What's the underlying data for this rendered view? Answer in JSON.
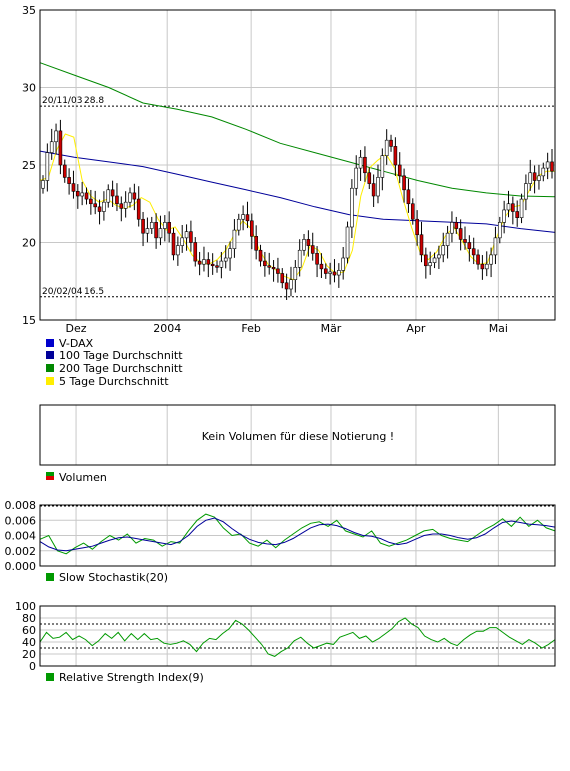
{
  "colors": {
    "vdax": "#0000cc",
    "ma100": "#000099",
    "ma200": "#008800",
    "ma5": "#ffee00",
    "volume_up": "#009900",
    "volume_down": "#dd0000",
    "stoch": "#009900",
    "rsi": "#009900"
  },
  "legend": {
    "vdax": "V-DAX",
    "ma100": "100 Tage Durchschnitt",
    "ma200": "200 Tage Durchschnitt",
    "ma5": "5 Tage Durchschnitt",
    "volume": "Volumen",
    "stoch": "Slow Stochastik(20)",
    "rsi": "Relative Strength Index(9)"
  },
  "volume_message": "Kein Volumen für diese Notierung !",
  "chart_data": [
    {
      "type": "candlestick",
      "id": "price",
      "ylim": [
        15,
        35
      ],
      "yticks": [
        15,
        20,
        25,
        30,
        35
      ],
      "xticks": [
        {
          "label": "Dez",
          "at": 0.07
        },
        {
          "label": "2004",
          "at": 0.247
        },
        {
          "label": "Feb",
          "at": 0.41
        },
        {
          "label": "Mär",
          "at": 0.565
        },
        {
          "label": "Apr",
          "at": 0.73
        },
        {
          "label": "Mai",
          "at": 0.89
        }
      ],
      "annotations": [
        {
          "label": "20/11/03",
          "value": 28.8,
          "text": "28.8"
        },
        {
          "label": "20/02/04",
          "value": 16.5,
          "text": "16.5"
        }
      ],
      "close": [
        24,
        25.8,
        26.5,
        27.2,
        25,
        24.2,
        23.8,
        23.3,
        23.0,
        23.2,
        22.8,
        22.5,
        22.3,
        22.0,
        22.6,
        23.4,
        23.0,
        22.5,
        22.2,
        22.6,
        23.2,
        22.8,
        21.5,
        20.6,
        20.9,
        21.3,
        20.3,
        20.9,
        21.3,
        20.6,
        19.2,
        19.8,
        20.3,
        20.7,
        20.0,
        18.8,
        18.6,
        18.9,
        18.6,
        18.5,
        18.4,
        18.8,
        19.0,
        19.6,
        20.8,
        21.5,
        21.8,
        21.4,
        20.4,
        19.5,
        18.8,
        18.5,
        18.4,
        18.3,
        18.0,
        17.4,
        17.0,
        17.6,
        18.4,
        19.5,
        20.2,
        19.8,
        19.3,
        18.6,
        18.3,
        18.0,
        18.1,
        17.9,
        18.2,
        19.0,
        21.0,
        23.5,
        24.8,
        25.5,
        24.5,
        23.8,
        23.0,
        24.2,
        25.6,
        26.6,
        26.2,
        25.0,
        24.3,
        23.4,
        22.5,
        21.5,
        20.5,
        19.2,
        18.5,
        18.7,
        19.0,
        19.2,
        19.8,
        20.6,
        21.3,
        20.9,
        20.2,
        20.0,
        19.6,
        19.2,
        18.6,
        18.3,
        18.6,
        19.2,
        20.3,
        21.3,
        22.1,
        22.5,
        22.0,
        21.6,
        22.8,
        23.8,
        24.5,
        24.0,
        24.3,
        24.8,
        25.2,
        24.6
      ],
      "ma100": [
        25.9,
        25.5,
        25.2,
        24.9,
        24.4,
        23.9,
        23.4,
        22.9,
        22.3,
        21.8,
        21.5,
        21.4,
        21.3,
        21.2,
        20.9,
        20.65
      ],
      "ma200": [
        31.6,
        30.8,
        30.0,
        29.0,
        28.6,
        28.1,
        27.3,
        26.4,
        25.8,
        25.2,
        24.6,
        24.0,
        23.5,
        23.2,
        23.0,
        22.95
      ],
      "ma5": [
        24,
        24.2,
        26.0,
        27.0,
        26.8,
        24.0,
        23.0,
        22.6,
        22.8,
        22.4,
        22.2,
        22.4,
        22.9,
        22.6,
        21.5,
        20.8,
        21.0,
        20.2,
        19.2,
        18.7,
        18.6,
        18.9,
        19.5,
        20.5,
        21.4,
        20.9,
        19.5,
        18.6,
        18.2,
        17.8,
        17.6,
        18.3,
        19.8,
        19.5,
        18.5,
        18.0,
        18.1,
        19.5,
        23.0,
        24.8,
        25.3,
        25.7,
        24.8,
        22.8,
        21.0,
        19.4,
        18.9,
        19.4,
        20.4,
        21.0,
        20.1,
        19.1,
        18.6,
        18.7,
        20.2,
        21.6,
        22.3,
        22.4,
        23.4,
        24.3,
        24.6,
        24.6
      ]
    },
    {
      "type": "line",
      "id": "stochastic",
      "ylim": [
        0,
        0.008
      ],
      "yticks": [
        "0.000",
        "0.002",
        "0.004",
        "0.006",
        "0.008"
      ],
      "series_slow": [
        0.0032,
        0.0025,
        0.0021,
        0.002,
        0.0022,
        0.0024,
        0.0026,
        0.003,
        0.0034,
        0.0037,
        0.0038,
        0.0036,
        0.0034,
        0.0032,
        0.003,
        0.0028,
        0.0032,
        0.004,
        0.0052,
        0.006,
        0.0063,
        0.0058,
        0.0049,
        0.0041,
        0.0035,
        0.0031,
        0.0029,
        0.0028,
        0.0031,
        0.0036,
        0.0043,
        0.005,
        0.0054,
        0.0055,
        0.0053,
        0.0049,
        0.0044,
        0.004,
        0.0039,
        0.0036,
        0.0031,
        0.0028,
        0.003,
        0.0035,
        0.004,
        0.0042,
        0.0042,
        0.004,
        0.0037,
        0.0035,
        0.0037,
        0.0042,
        0.005,
        0.0057,
        0.0059,
        0.0057,
        0.0055,
        0.0054,
        0.0053,
        0.0051
      ],
      "series_fast": [
        0.0035,
        0.004,
        0.002,
        0.0016,
        0.0024,
        0.003,
        0.0022,
        0.0032,
        0.004,
        0.0034,
        0.0042,
        0.003,
        0.0036,
        0.0034,
        0.0026,
        0.0032,
        0.003,
        0.0046,
        0.006,
        0.0068,
        0.0064,
        0.005,
        0.004,
        0.0042,
        0.003,
        0.0026,
        0.0034,
        0.0024,
        0.0034,
        0.0042,
        0.005,
        0.0056,
        0.0058,
        0.0052,
        0.006,
        0.0046,
        0.0042,
        0.0038,
        0.0046,
        0.003,
        0.0026,
        0.003,
        0.0034,
        0.004,
        0.0046,
        0.0048,
        0.004,
        0.0036,
        0.0034,
        0.0032,
        0.004,
        0.0048,
        0.0054,
        0.0062,
        0.0052,
        0.0064,
        0.0052,
        0.006,
        0.005,
        0.0046
      ]
    },
    {
      "type": "line",
      "id": "rsi",
      "ylim": [
        0,
        100
      ],
      "yticks": [
        "0",
        "20",
        "40",
        "60",
        "80",
        "100"
      ],
      "levels": [
        30,
        70
      ],
      "series": [
        40,
        56,
        46,
        48,
        56,
        44,
        50,
        44,
        34,
        42,
        54,
        46,
        56,
        42,
        54,
        44,
        54,
        44,
        46,
        38,
        36,
        38,
        42,
        36,
        24,
        38,
        46,
        44,
        54,
        62,
        76,
        70,
        60,
        48,
        36,
        20,
        16,
        24,
        30,
        42,
        48,
        38,
        30,
        34,
        38,
        36,
        48,
        52,
        56,
        46,
        50,
        40,
        46,
        54,
        62,
        74,
        80,
        70,
        64,
        50,
        44,
        40,
        46,
        38,
        34,
        44,
        52,
        58,
        58,
        64,
        64,
        56,
        48,
        42,
        36,
        44,
        38,
        30,
        36,
        44
      ]
    }
  ]
}
